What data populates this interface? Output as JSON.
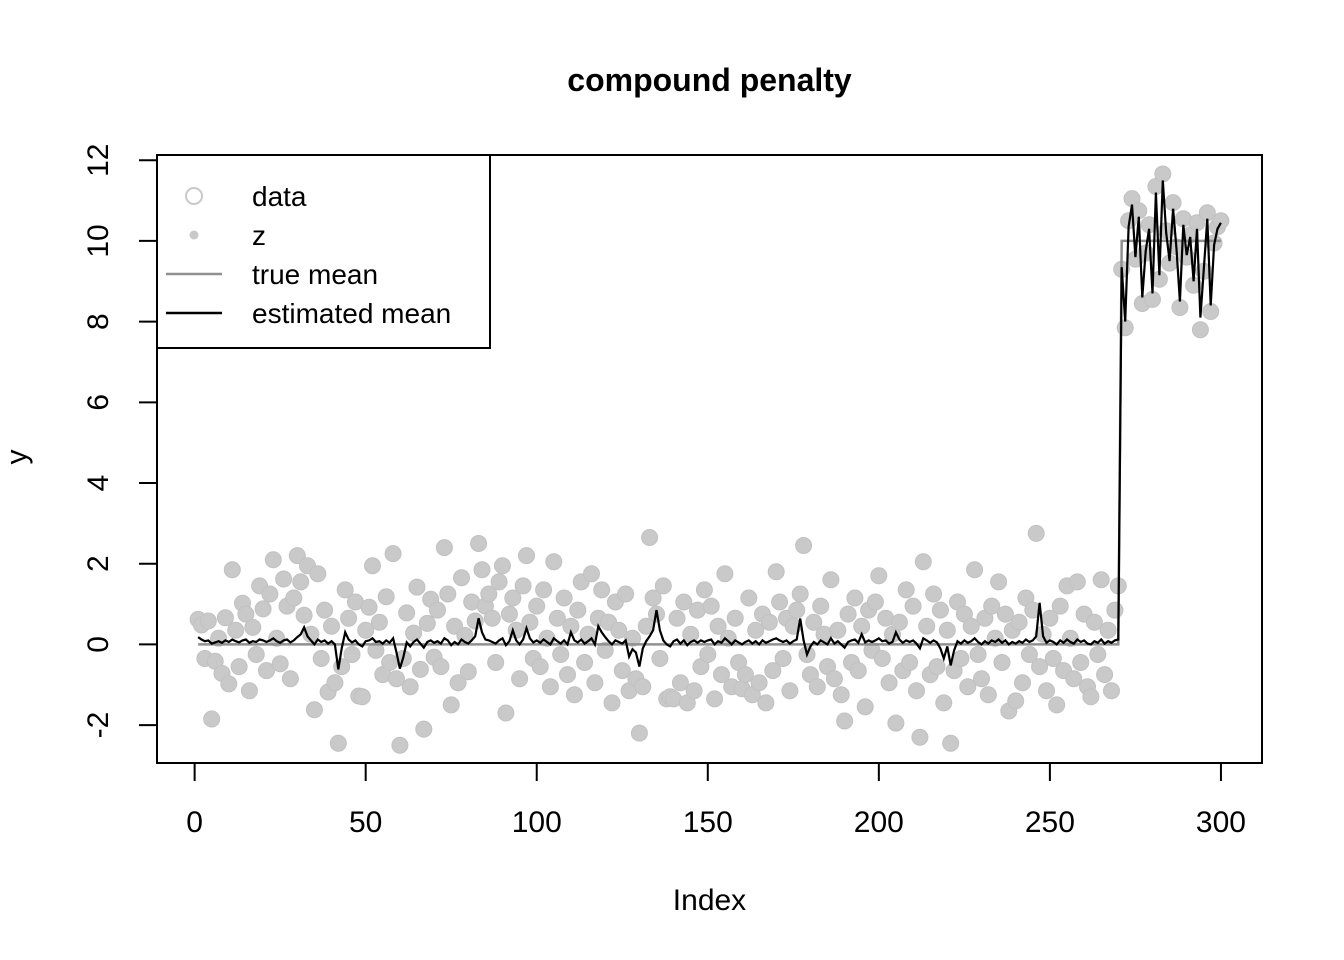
{
  "chart_data": {
    "type": "scatter",
    "title": "compound penalty",
    "xlabel": "Index",
    "ylabel": "y",
    "xlim": [
      -11,
      312
    ],
    "ylim": [
      -2.94,
      12.13
    ],
    "x_ticks": [
      0,
      50,
      100,
      150,
      200,
      250,
      300
    ],
    "y_ticks": [
      -2,
      0,
      2,
      4,
      6,
      8,
      10,
      12
    ],
    "grid": false,
    "legend_position": "top-left",
    "colors": {
      "points": "#c9c9c9",
      "true_mean": "#909090",
      "estimated_mean": "#000000"
    },
    "legend": [
      {
        "label": "data",
        "symbol": "open-circle",
        "color": "#c9c9c9"
      },
      {
        "label": "z",
        "symbol": "filled-dot",
        "color": "#c9c9c9"
      },
      {
        "label": "true mean",
        "symbol": "line",
        "color": "#909090"
      },
      {
        "label": "estimated mean",
        "symbol": "line",
        "color": "#000000"
      }
    ],
    "series": [
      {
        "name": "data",
        "type": "points",
        "color": "#c9c9c9",
        "x_start": 1,
        "y": [
          0.62,
          0.48,
          -0.35,
          0.58,
          -1.85,
          -0.42,
          0.15,
          -0.72,
          0.66,
          -0.98,
          1.85,
          0.35,
          -0.55,
          1.02,
          0.75,
          -1.15,
          0.42,
          -0.25,
          1.45,
          0.88,
          -0.65,
          1.25,
          2.1,
          0.15,
          -0.48,
          1.62,
          0.95,
          -0.85,
          1.15,
          2.2,
          1.55,
          0.72,
          1.95,
          0.25,
          -1.62,
          1.75,
          -0.35,
          0.85,
          -1.18,
          0.45,
          -0.95,
          -2.45,
          -0.55,
          1.35,
          0.65,
          -0.25,
          1.05,
          -1.28,
          -1.3,
          0.35,
          0.92,
          1.95,
          -0.15,
          0.55,
          -0.75,
          1.18,
          -0.45,
          2.25,
          -0.85,
          -2.5,
          -0.35,
          0.78,
          -1.05,
          0.28,
          1.42,
          -0.62,
          -2.1,
          0.52,
          1.12,
          -0.32,
          0.85,
          -0.55,
          2.4,
          1.25,
          -1.5,
          0.45,
          -0.95,
          1.65,
          0.22,
          -0.68,
          1.05,
          0.58,
          2.5,
          1.85,
          0.95,
          1.25,
          0.65,
          -0.45,
          1.55,
          1.95,
          -1.7,
          0.75,
          1.15,
          0.35,
          -0.85,
          1.45,
          2.2,
          0.55,
          -0.35,
          0.95,
          -0.55,
          1.35,
          0.15,
          -1.05,
          2.05,
          0.65,
          -0.25,
          1.15,
          -0.75,
          0.45,
          -1.25,
          0.85,
          1.55,
          -0.45,
          0.25,
          1.75,
          -0.95,
          0.65,
          1.35,
          -0.15,
          0.55,
          -1.45,
          1.05,
          0.35,
          -0.65,
          1.25,
          -1.15,
          0.15,
          -0.85,
          -2.2,
          -1.05,
          0.45,
          2.65,
          1.15,
          0.75,
          -0.35,
          1.45,
          -1.35,
          -1.3,
          -1.35,
          0.65,
          -0.95,
          1.05,
          -1.45,
          0.25,
          -1.15,
          0.85,
          -0.55,
          1.35,
          -0.25,
          0.95,
          -1.35,
          0.45,
          -0.75,
          1.75,
          0.15,
          -1.05,
          0.65,
          -0.45,
          -1.1,
          -0.75,
          1.15,
          -1.25,
          0.35,
          -0.95,
          0.75,
          -1.45,
          0.55,
          -0.65,
          1.8,
          1.05,
          -0.35,
          0.65,
          -1.15,
          0.45,
          0.85,
          1.25,
          2.45,
          -0.25,
          -0.75,
          0.55,
          -1.05,
          0.95,
          0.25,
          -0.55,
          1.6,
          -0.85,
          0.35,
          -1.25,
          -1.9,
          0.75,
          -0.45,
          1.15,
          -0.65,
          0.45,
          -1.55,
          0.85,
          -0.15,
          1.05,
          1.7,
          -0.35,
          0.65,
          -0.95,
          0.25,
          -1.95,
          0.55,
          -0.65,
          1.35,
          -0.45,
          0.95,
          -1.15,
          -2.3,
          2.05,
          0.45,
          -0.75,
          1.25,
          -0.55,
          0.85,
          -1.45,
          0.35,
          -2.45,
          -0.65,
          1.05,
          -0.35,
          0.75,
          -1.05,
          0.45,
          1.85,
          -0.25,
          -0.85,
          0.65,
          -1.25,
          0.95,
          0.15,
          1.55,
          -0.45,
          0.75,
          -1.65,
          0.35,
          -1.4,
          0.55,
          -0.95,
          1.15,
          -0.25,
          0.85,
          2.75,
          -0.55,
          0.25,
          -1.15,
          0.65,
          -0.35,
          -1.5,
          0.95,
          -0.65,
          1.45,
          0.15,
          -0.85,
          1.55,
          -0.45,
          0.75,
          -1.05,
          -1.3,
          0.55,
          -0.25,
          1.6,
          -0.75,
          0.35,
          -1.15,
          0.85,
          1.45,
          9.3,
          7.85,
          10.5,
          11.05,
          9.55,
          10.75,
          8.45,
          9.7,
          10.4,
          8.55,
          11.35,
          9.05,
          11.66,
          10.25,
          9.45,
          10.95,
          9.85,
          8.35,
          10.55,
          9.6,
          10.15,
          8.9,
          10.45,
          7.8,
          9.25,
          10.7,
          8.25,
          9.95,
          10.35,
          10.5
        ]
      },
      {
        "name": "true mean",
        "type": "line",
        "color": "#909090",
        "width": 2.5,
        "points": [
          [
            1,
            0
          ],
          [
            270,
            0
          ],
          [
            271,
            10
          ],
          [
            300,
            10
          ]
        ]
      },
      {
        "name": "estimated mean",
        "type": "line",
        "color": "#000000",
        "width": 2.2,
        "x_start": 1,
        "y": [
          0.18,
          0.12,
          0.08,
          0.1,
          0.02,
          0.05,
          0.08,
          0.04,
          0.1,
          0.06,
          0.12,
          0.08,
          0.05,
          0.1,
          0.12,
          0.04,
          0.08,
          0.06,
          0.12,
          0.1,
          0.06,
          0.1,
          0.15,
          0.08,
          0.04,
          0.1,
          0.12,
          0.05,
          0.1,
          0.18,
          0.25,
          0.42,
          0.2,
          0.1,
          0,
          0.12,
          0.06,
          0.1,
          0.02,
          0.08,
          0,
          -0.62,
          -0.1,
          0.3,
          0.12,
          0.05,
          0.1,
          0,
          -0.05,
          0.08,
          0.1,
          0.15,
          0.06,
          0.08,
          0.02,
          0.1,
          0.04,
          0.15,
          -0.2,
          -0.6,
          -0.32,
          0.05,
          -0.05,
          0.06,
          0.12,
          0.02,
          -0.08,
          0.06,
          0.1,
          0.04,
          0.08,
          0.02,
          0.15,
          0.1,
          -0.02,
          0.06,
          0,
          0.12,
          0.06,
          0.02,
          0.1,
          0.2,
          0.65,
          0.3,
          0.12,
          0.1,
          0.06,
          0.02,
          0.1,
          0.15,
          -0.02,
          0.08,
          0.35,
          0.1,
          0,
          0.12,
          0.4,
          0.15,
          0.05,
          0.1,
          0.04,
          0.12,
          0.06,
          0,
          0.15,
          0.08,
          0.02,
          0.1,
          0,
          0.3,
          0.1,
          0.05,
          0.12,
          0.02,
          0.08,
          0.15,
          0,
          0.45,
          0.3,
          0.18,
          0.08,
          0,
          0.1,
          0.06,
          0.02,
          0.1,
          -0.3,
          -0.12,
          -0.2,
          -0.55,
          -0.1,
          0.08,
          0.2,
          0.35,
          0.85,
          0.35,
          0.1,
          0,
          -0.05,
          0.08,
          0.12,
          0.02,
          0.1,
          -0.02,
          0.06,
          0.1,
          0.04,
          0.1,
          0.06,
          0.1,
          0.12,
          0,
          0.08,
          0.04,
          0.15,
          0.08,
          0,
          0.1,
          0.05,
          0,
          0.06,
          0.1,
          0.02,
          0.08,
          0,
          0.1,
          0.04,
          0.08,
          0.12,
          0.15,
          0.1,
          0.06,
          0.1,
          0.02,
          0.08,
          0.12,
          0.64,
          0.1,
          -0.25,
          -0.05,
          0.06,
          0,
          0.1,
          0.05,
          0,
          0.15,
          0.02,
          0.08,
          0,
          -0.08,
          0.06,
          0.1,
          0.12,
          0.04,
          0.25,
          0.05,
          0.1,
          0.06,
          0.1,
          0.15,
          0.08,
          0.1,
          0.02,
          0.06,
          0.3,
          0.12,
          0.04,
          0.1,
          0.06,
          0.1,
          0.02,
          -0.1,
          0.15,
          0.1,
          0.04,
          0.1,
          0.05,
          -0.1,
          -0.35,
          -0.05,
          -0.52,
          -0.15,
          0.08,
          0.02,
          0.1,
          0.04,
          0.08,
          0.15,
          0.06,
          0,
          0.08,
          0.02,
          0.1,
          0.06,
          0.12,
          0.04,
          0.1,
          0,
          0.06,
          0.02,
          0.08,
          0.04,
          0.12,
          0.06,
          0.1,
          0.2,
          1.03,
          0.2,
          0.04,
          0.1,
          0.06,
          0,
          0.1,
          0.04,
          0.12,
          0.06,
          0.02,
          0.12,
          0.06,
          0.1,
          0.02,
          0,
          0.08,
          0.04,
          0.12,
          0.02,
          0.08,
          0.04,
          0.1,
          0.12,
          9.35,
          8.0,
          10.35,
          10.9,
          9.6,
          10.6,
          8.6,
          9.75,
          10.3,
          8.7,
          11.2,
          9.15,
          11.5,
          10.2,
          9.5,
          10.8,
          9.8,
          8.5,
          10.4,
          9.65,
          10.1,
          9.0,
          10.3,
          8.1,
          9.3,
          10.55,
          8.4,
          9.9,
          10.3,
          10.45
        ]
      }
    ]
  }
}
